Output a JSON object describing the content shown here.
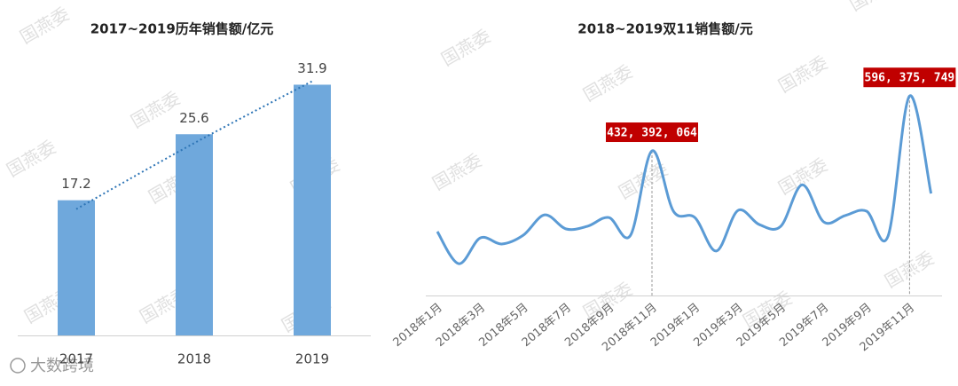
{
  "chart_data": [
    {
      "type": "bar",
      "title": "2017~2019历年销售额/亿元",
      "categories": [
        "2017",
        "2018",
        "2019"
      ],
      "values": [
        17.2,
        25.6,
        31.9
      ],
      "color": "#6fa8dc",
      "ylim": [
        0,
        35
      ],
      "trendline": true
    },
    {
      "type": "line",
      "title": "2018~2019双11销售额/元",
      "categories": [
        "2018年1月",
        null,
        "2018年3月",
        null,
        "2018年5月",
        null,
        "2018年7月",
        null,
        "2018年9月",
        null,
        "2018年11月",
        null,
        "2019年1月",
        null,
        "2019年3月",
        null,
        "2019年5月",
        null,
        "2019年7月",
        null,
        "2019年9月",
        null,
        "2019年11月",
        null
      ],
      "values": [
        191000000,
        95000000,
        172000000,
        154000000,
        180000000,
        241000000,
        199000000,
        207000000,
        233000000,
        180000000,
        432392064,
        252000000,
        233000000,
        133000000,
        254000000,
        212000000,
        207000000,
        331000000,
        220000000,
        239000000,
        252000000,
        178000000,
        596375749,
        305000000
      ],
      "value_labels": [
        null,
        null,
        null,
        null,
        null,
        null,
        null,
        null,
        null,
        null,
        "432, 392, 064",
        null,
        null,
        null,
        null,
        null,
        null,
        null,
        null,
        null,
        null,
        null,
        "596, 375, 749",
        null
      ],
      "color": "#5b9bd5",
      "ylim": [
        0,
        650000000
      ]
    }
  ],
  "watermark": "国燕委",
  "logo": "大数跨境"
}
